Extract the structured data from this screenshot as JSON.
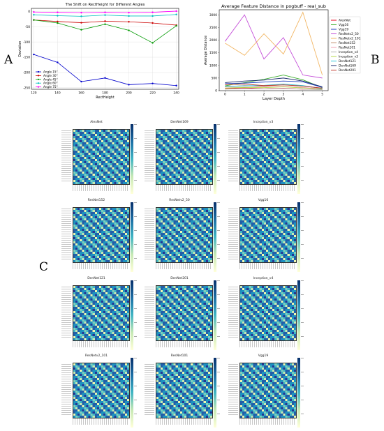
{
  "panel_labels": {
    "a": "A",
    "b": "B",
    "c": "C"
  },
  "chart_data": [
    {
      "type": "line",
      "title": "The Shift on RectHeight for Different Angles",
      "xlabel": "RectHeight",
      "ylabel": "Deviation",
      "x": [
        120,
        140,
        160,
        180,
        200,
        220,
        240
      ],
      "xlim": [
        118,
        242
      ],
      "ylim": [
        -255,
        10
      ],
      "yticks": [
        0,
        -50,
        -100,
        -150,
        -200,
        -250
      ],
      "grid": true,
      "legend_position": "lower-left",
      "series": [
        {
          "name": "Angle 15°",
          "color": "#0000cc",
          "marker": "circle",
          "values": [
            -141,
            -167,
            -230,
            -218,
            -240,
            -236,
            -243
          ]
        },
        {
          "name": "Angle 30°",
          "color": "#cc0000",
          "marker": "circle",
          "values": [
            -28,
            -33,
            -37,
            -32,
            -34,
            -38,
            -45
          ]
        },
        {
          "name": "Angle 45°",
          "color": "#009900",
          "marker": "circle",
          "values": [
            -28,
            -38,
            -60,
            -42,
            -62,
            -103,
            -47
          ]
        },
        {
          "name": "Angle 60°",
          "color": "#00bfbf",
          "marker": "circle",
          "values": [
            -11,
            -14,
            -16,
            -12,
            -15,
            -15,
            -10
          ]
        },
        {
          "name": "Angle 75°",
          "color": "#ff00ff",
          "marker": "circle",
          "values": [
            -2,
            -3,
            -4,
            -3,
            -4,
            -3,
            1
          ]
        }
      ]
    },
    {
      "type": "line",
      "title": "Average Feature Distance in pogbuff - real_sub",
      "xlabel": "Layer Depth",
      "ylabel": "Average Distance",
      "x": [
        0,
        1,
        2,
        3,
        4,
        5
      ],
      "xlim": [
        -0.3,
        5.3
      ],
      "ylim": [
        0,
        3200
      ],
      "yticks": [
        0,
        500,
        1000,
        1500,
        2000,
        2500,
        3000
      ],
      "grid": false,
      "legend_position": "outside-right",
      "series": [
        {
          "name": "AlexNet",
          "color": "#e8001c",
          "values": [
            80,
            110,
            70,
            90,
            60,
            50
          ]
        },
        {
          "name": "Vgg16",
          "color": "#3cae2c",
          "values": [
            190,
            320,
            450,
            620,
            430,
            120
          ]
        },
        {
          "name": "Vgg19",
          "color": "#1f3fbf",
          "values": [
            280,
            300,
            340,
            380,
            350,
            130
          ]
        },
        {
          "name": "ResNetv2_50",
          "color": "#c44ed8",
          "values": [
            1950,
            3000,
            1250,
            2100,
            620,
            500
          ]
        },
        {
          "name": "ResNetv2_101",
          "color": "#f2b766",
          "values": [
            1880,
            1400,
            2250,
            1450,
            3100,
            620
          ]
        },
        {
          "name": "ResNet152",
          "color": "#c08a6a",
          "values": [
            150,
            200,
            180,
            230,
            180,
            90
          ]
        },
        {
          "name": "ResNet101",
          "color": "#f2a3b6",
          "values": [
            110,
            140,
            150,
            170,
            130,
            70
          ]
        },
        {
          "name": "Inception_v4",
          "color": "#b0b0b0",
          "values": [
            60,
            80,
            70,
            80,
            60,
            40
          ]
        },
        {
          "name": "Inception_v3",
          "color": "#b5d94c",
          "values": [
            100,
            130,
            120,
            150,
            110,
            60
          ]
        },
        {
          "name": "DenNet121",
          "color": "#26c6da",
          "values": [
            170,
            190,
            210,
            260,
            200,
            80
          ]
        },
        {
          "name": "DenNet169",
          "color": "#1a2a6c",
          "values": [
            320,
            380,
            420,
            500,
            380,
            150
          ]
        },
        {
          "name": "DenNet201",
          "color": "#c0392b",
          "values": [
            240,
            260,
            200,
            230,
            180,
            100
          ]
        }
      ]
    },
    {
      "type": "heatmap",
      "colormap": "YlGnBu",
      "panels": [
        {
          "title": "AlexNet"
        },
        {
          "title": "DenNet169"
        },
        {
          "title": "Inception_v3"
        },
        {
          "title": "ResNet152"
        },
        {
          "title": "ResNetv2_50"
        },
        {
          "title": "Vgg16"
        },
        {
          "title": "DenNet121"
        },
        {
          "title": "DenNet201"
        },
        {
          "title": "Inception_v4"
        },
        {
          "title": "ResNetv2_101"
        },
        {
          "title": "ResNet101"
        },
        {
          "title": "Vgg19"
        }
      ]
    }
  ]
}
